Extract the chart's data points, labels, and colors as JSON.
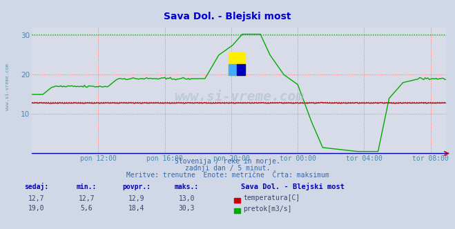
{
  "title": "Sava Dol. - Blejski most",
  "title_color": "#0000cc",
  "bg_color": "#d0d8e8",
  "plot_bg_color": "#d8dce8",
  "grid_color_h": "#ff6666",
  "grid_color_v": "#ff6666",
  "ylim": [
    0,
    32
  ],
  "yticks": [
    10,
    20,
    30
  ],
  "xlabel_color": "#4488aa",
  "text_color": "#3366aa",
  "xtick_labels": [
    "pon 12:00",
    "pon 16:00",
    "pon 20:00",
    "tor 00:00",
    "tor 04:00",
    "tor 08:00"
  ],
  "xtick_positions": [
    48,
    96,
    144,
    192,
    240,
    288
  ],
  "temp_color": "#cc0000",
  "flow_color": "#00aa00",
  "temp_max": 13.0,
  "flow_max": 30.3,
  "watermark": "www.si-vreme.com",
  "subtitle1": "Slovenija / reke in morje.",
  "subtitle2": "zadnji dan / 5 minut.",
  "subtitle3": "Meritve: trenutne  Enote: metrične  Črta: maksimum",
  "legend_title": "Sava Dol. - Blejski most",
  "legend_temp": "temperatura[C]",
  "legend_flow": "pretok[m3/s]",
  "table_headers": [
    "sedaj:",
    "min.:",
    "povpr.:",
    "maks.:"
  ],
  "table_temp": [
    "12,7",
    "12,7",
    "12,9",
    "13,0"
  ],
  "table_flow": [
    "19,0",
    "5,6",
    "18,4",
    "30,3"
  ]
}
